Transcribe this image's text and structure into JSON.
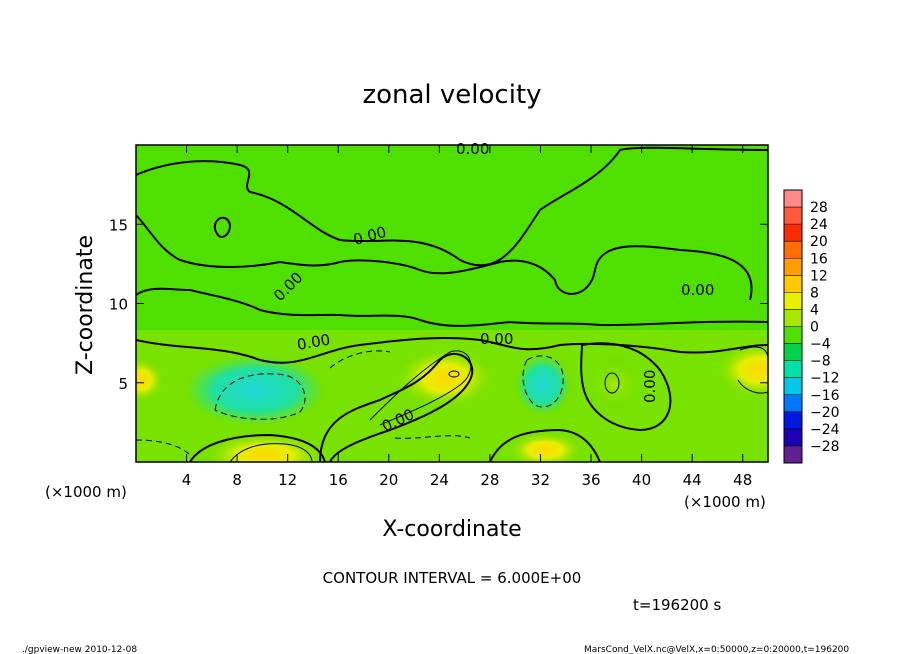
{
  "chart_data": {
    "type": "heatmap",
    "title": "zonal velocity",
    "xlabel": "X-coordinate",
    "ylabel": "Z-coordinate",
    "x_unit": "(×1000 m)",
    "y_unit": "(×1000 m)",
    "xlim": [
      0,
      50
    ],
    "ylim": [
      0,
      20
    ],
    "x_ticks": [
      "4",
      "8",
      "12",
      "16",
      "20",
      "24",
      "28",
      "32",
      "36",
      "40",
      "44",
      "48"
    ],
    "y_ticks": [
      "5",
      "10",
      "15"
    ],
    "contour_interval_text": "CONTOUR INTERVAL = 6.000E+00",
    "time_text": "t=196200 s",
    "contour_labels": [
      "0.00",
      "0.00",
      "0.00",
      "0.00",
      "0.00",
      "0.00",
      "0.00",
      "0.00"
    ],
    "colorbar": {
      "levels": [
        "28",
        "24",
        "20",
        "16",
        "12",
        "8",
        "4",
        "0",
        "−4",
        "−8",
        "−12",
        "−16",
        "−20",
        "−24",
        "−28"
      ],
      "colors": [
        "#ff8a8a",
        "#ff5a3c",
        "#ff2a00",
        "#ff6e00",
        "#ff9e00",
        "#ffc800",
        "#e8f000",
        "#a8e800",
        "#50e000",
        "#00d24a",
        "#00e0a8",
        "#00c8e8",
        "#0078ff",
        "#0018e0",
        "#2000b0",
        "#602090"
      ]
    },
    "regions": [
      {
        "name": "positive-bottom-left",
        "x": 11,
        "z": 0.8,
        "value": 14
      },
      {
        "name": "positive-center",
        "x": 25,
        "z": 5.5,
        "value": 12
      },
      {
        "name": "positive-right",
        "x": 48,
        "z": 6,
        "value": 10
      },
      {
        "name": "positive-bottom-center",
        "x": 33,
        "z": 1.2,
        "value": 10
      },
      {
        "name": "negative-left",
        "x": 10,
        "z": 4.5,
        "value": -10
      },
      {
        "name": "negative-center",
        "x": 32,
        "z": 5,
        "value": -8
      }
    ]
  },
  "footer": {
    "left": "./gpview-new  2010-12-08",
    "right": "MarsCond_VelX.nc@VelX,x=0:50000,z=0:20000,t=196200"
  }
}
